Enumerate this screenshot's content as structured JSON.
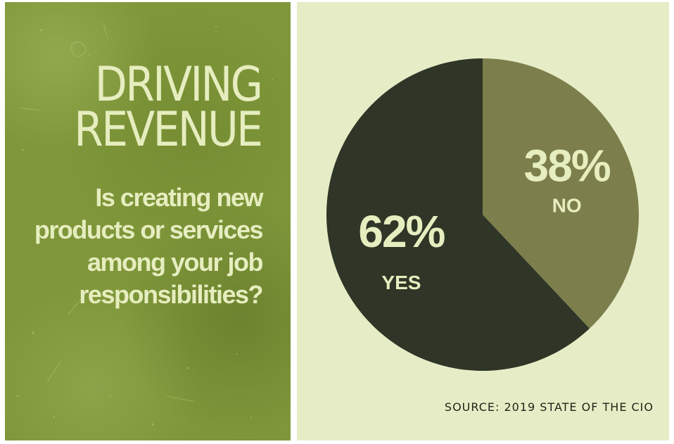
{
  "headline": [
    "DRIVING",
    "REVENUE"
  ],
  "question": "Is creating new products or services among your job responsibilities?",
  "chart_data": {
    "type": "pie",
    "slices": [
      {
        "label": "NO",
        "value": 38,
        "display": "38%",
        "color": "#7c7f4c"
      },
      {
        "label": "YES",
        "value": 62,
        "display": "62%",
        "color": "#2f3627"
      }
    ],
    "start_position": "top (12 o'clock), clockwise",
    "label_color": "#e6edbf"
  },
  "source": "SOURCE: 2019 STATE OF THE CIO",
  "colors": {
    "left_panel": "#7f973a",
    "right_panel": "#e6edc6",
    "text_light": "#e6edbf",
    "text_dark": "#1f2416"
  }
}
